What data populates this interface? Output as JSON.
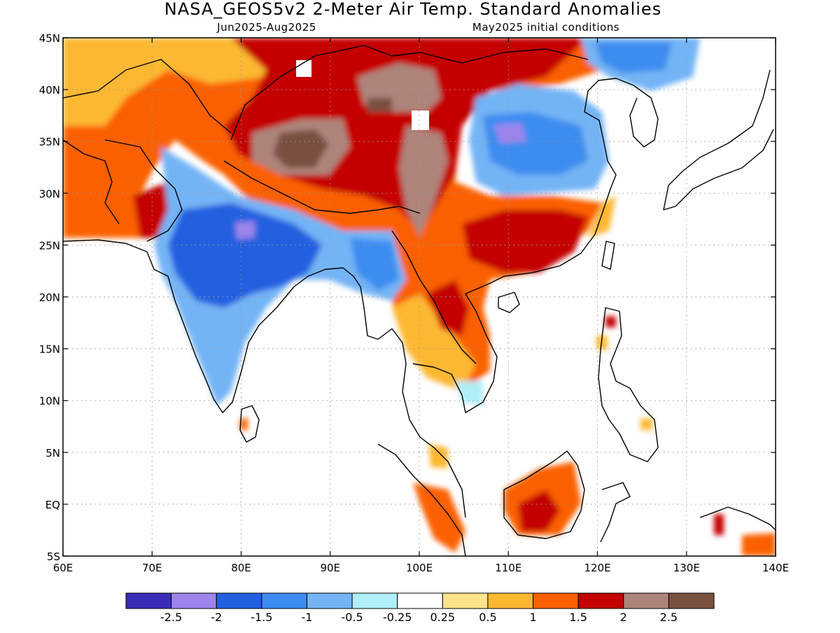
{
  "title": "NASA_GEOS5v2 2-Meter Air Temp. Standard Anomalies",
  "subtitle_left": "Jun2025-Aug2025",
  "subtitle_right": "May2025 initial conditions",
  "map": {
    "lon_range": [
      60,
      140
    ],
    "lat_range": [
      -5,
      45
    ],
    "grid": true,
    "lon_ticks": [
      {
        "v": 60,
        "label": "60E"
      },
      {
        "v": 70,
        "label": "70E"
      },
      {
        "v": 80,
        "label": "80E"
      },
      {
        "v": 90,
        "label": "90E"
      },
      {
        "v": 100,
        "label": "100E"
      },
      {
        "v": 110,
        "label": "110E"
      },
      {
        "v": 120,
        "label": "120E"
      },
      {
        "v": 130,
        "label": "130E"
      },
      {
        "v": 140,
        "label": "140E"
      }
    ],
    "lat_ticks": [
      {
        "v": -5,
        "label": "5S"
      },
      {
        "v": 0,
        "label": "EQ"
      },
      {
        "v": 5,
        "label": "5N"
      },
      {
        "v": 10,
        "label": "10N"
      },
      {
        "v": 15,
        "label": "15N"
      },
      {
        "v": 20,
        "label": "20N"
      },
      {
        "v": 25,
        "label": "25N"
      },
      {
        "v": 30,
        "label": "30N"
      },
      {
        "v": 35,
        "label": "35N"
      },
      {
        "v": 40,
        "label": "40N"
      },
      {
        "v": 45,
        "label": "45N"
      }
    ]
  },
  "colorbar": {
    "colors": [
      "#3b2db8",
      "#9c84ec",
      "#2160e0",
      "#3d8cf0",
      "#73b4f5",
      "#b0eef8",
      "#ffffff",
      "#fde38a",
      "#fdb832",
      "#fa6000",
      "#c40000",
      "#ae847a",
      "#7a5040"
    ],
    "labels": [
      "-2.5",
      "-2",
      "-1.5",
      "-1",
      "-0.5",
      "-0.25",
      "0.25",
      "0.5",
      "1",
      "1.5",
      "2",
      "2.5"
    ]
  }
}
